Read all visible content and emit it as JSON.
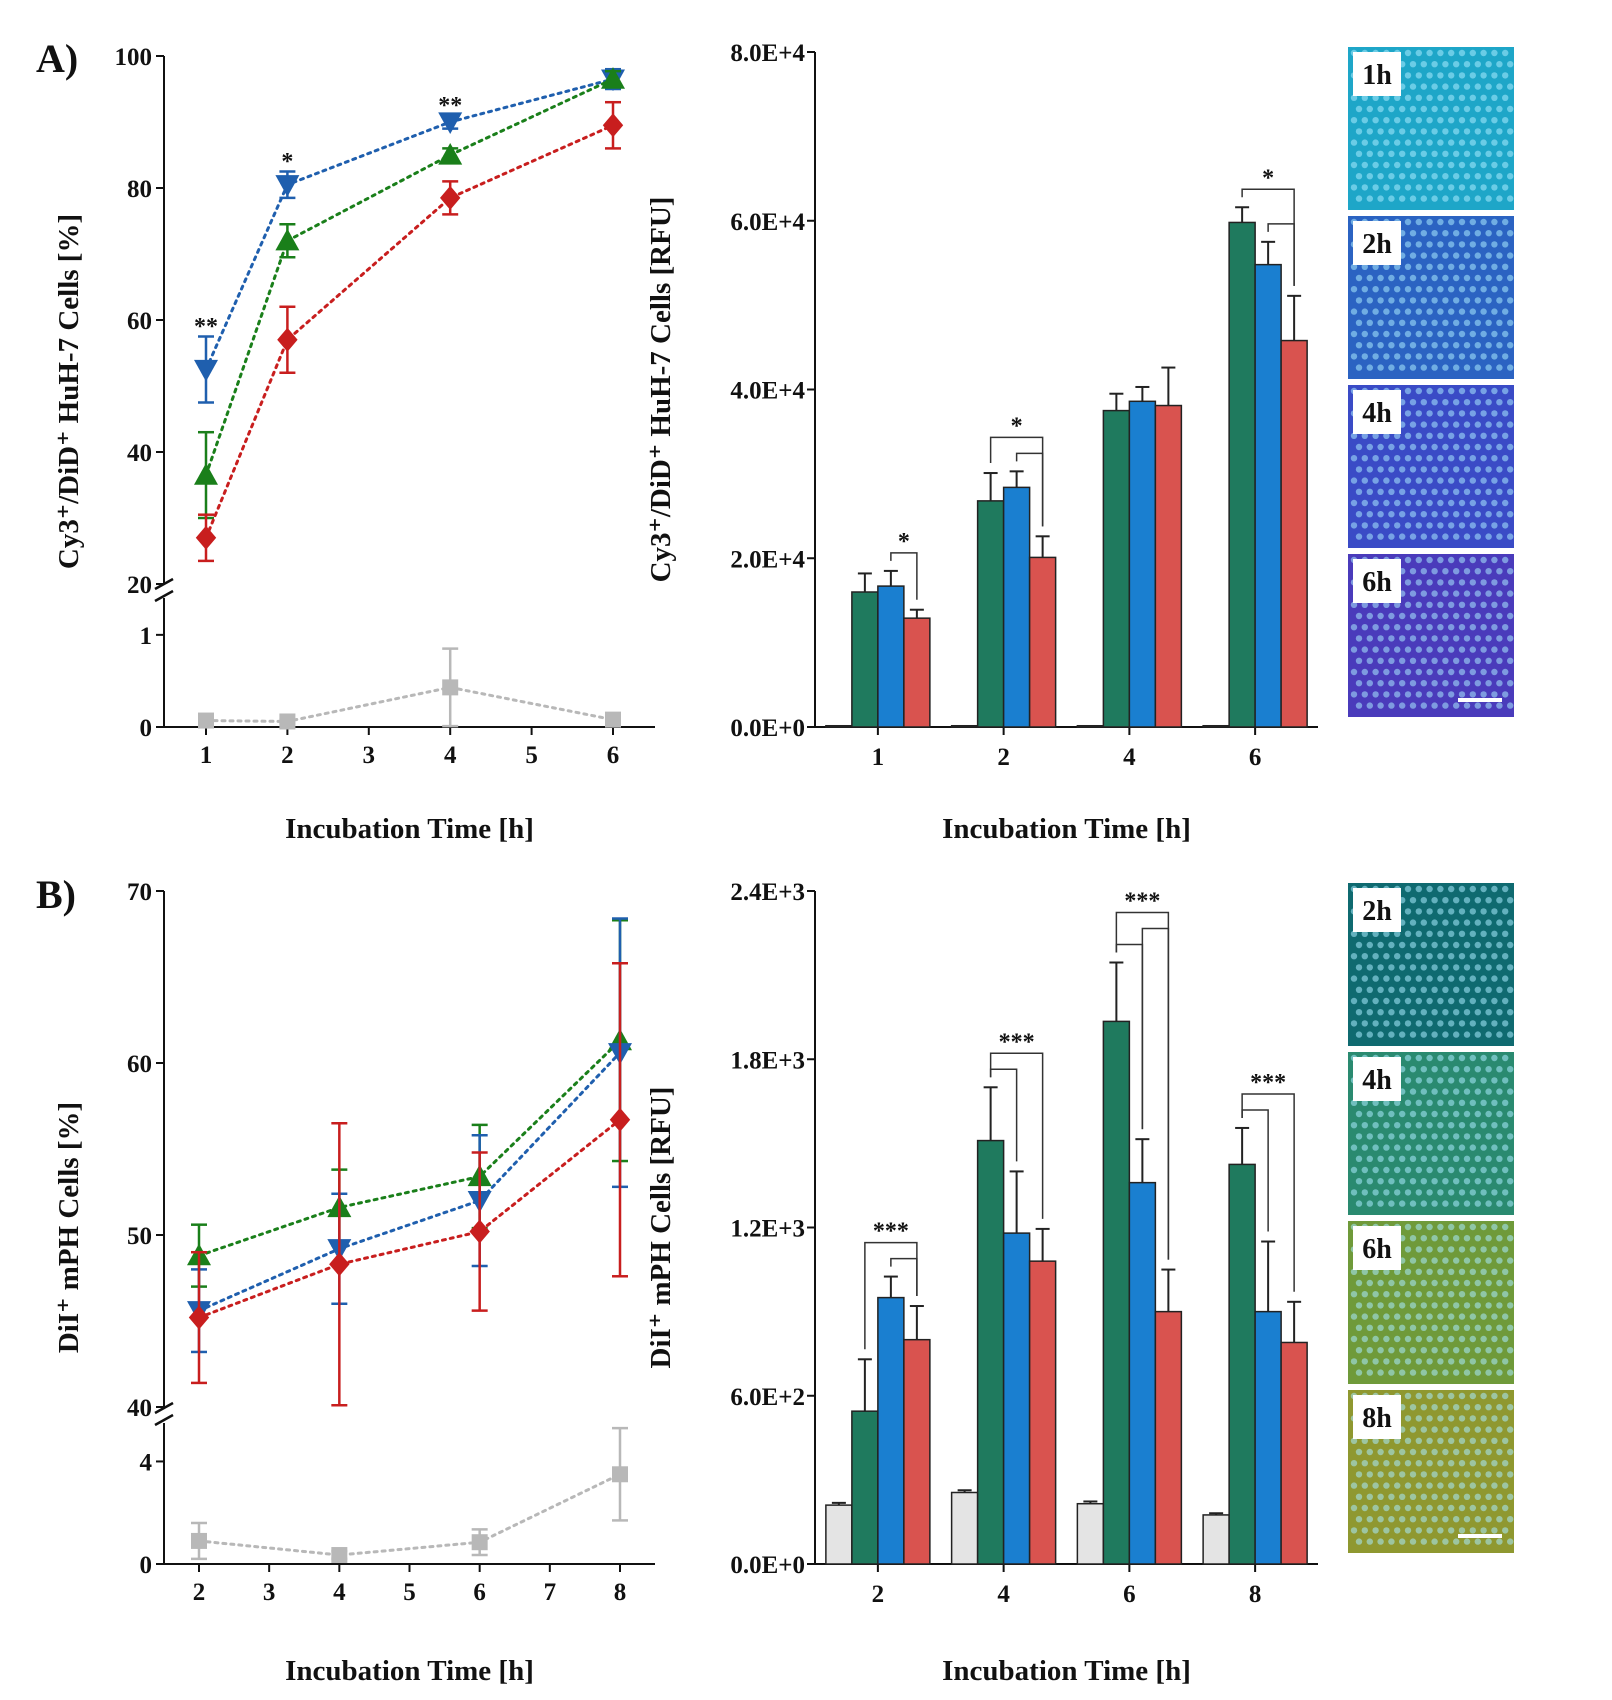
{
  "panels": {
    "a": {
      "label": "A)"
    },
    "b": {
      "label": "B)"
    }
  },
  "colors": {
    "green_line": "#1a7f1a",
    "blue_line": "#1f5fae",
    "red_line": "#c81e1e",
    "gray_line": "#b8b8b8",
    "bar_green": "#1f7a5e",
    "bar_blue": "#1a7fd0",
    "bar_red": "#d9534f",
    "bar_gray": "#e4e4e4"
  },
  "micrographs": {
    "a": {
      "labels": [
        "1h",
        "2h",
        "4h",
        "6h"
      ],
      "colors": [
        "#1ea6c8",
        "#2b63c2",
        "#3a4bc6",
        "#4a3bbb"
      ]
    },
    "b": {
      "labels": [
        "2h",
        "4h",
        "6h",
        "8h"
      ],
      "colors": [
        "#0f6a70",
        "#2a8a70",
        "#6f9a3a",
        "#8f9830"
      ]
    }
  },
  "chart_data": [
    {
      "id": "A_left",
      "type": "line",
      "xlabel": "Incubation Time [h]",
      "ylabel": "Cy3⁺/DiD⁺ HuH-7 Cells [%]",
      "x_ticks": [
        "1",
        "2",
        "3",
        "4",
        "5",
        "6"
      ],
      "y_ticks_upper": [
        "20",
        "40",
        "60",
        "80",
        "100"
      ],
      "y_ticks_lower": [
        "0",
        "1"
      ],
      "ylim_upper": [
        20,
        100
      ],
      "ylim_lower": [
        0,
        1.4
      ],
      "axis_break": true,
      "x": [
        1,
        2,
        4,
        6
      ],
      "series": [
        {
          "color_key": "blue_line",
          "marker": "triangle-down",
          "values": [
            52.5,
            80.5,
            90.0,
            96.5
          ],
          "errors": [
            5.0,
            2.0,
            1.0,
            1.5
          ]
        },
        {
          "color_key": "green_line",
          "marker": "triangle-up",
          "values": [
            36.5,
            72.0,
            85.0,
            96.5
          ],
          "errors": [
            6.5,
            2.5,
            1.0,
            1.2
          ]
        },
        {
          "color_key": "red_line",
          "marker": "diamond",
          "values": [
            27.0,
            57.0,
            78.5,
            89.5
          ],
          "errors": [
            3.5,
            5.0,
            2.5,
            3.5
          ]
        },
        {
          "color_key": "gray_line",
          "marker": "square",
          "lower": true,
          "values": [
            0.07,
            0.06,
            0.43,
            0.08
          ],
          "errors": [
            0.02,
            0.02,
            0.42,
            0.02
          ]
        }
      ],
      "annotations": [
        {
          "x": 1,
          "y": 58.5,
          "text": "**"
        },
        {
          "x": 2,
          "y": 83.5,
          "text": "*"
        },
        {
          "x": 4,
          "y": 92.0,
          "text": "**"
        }
      ]
    },
    {
      "id": "A_right",
      "type": "bar",
      "xlabel": "Incubation Time [h]",
      "ylabel": "Cy3⁺/DiD⁺ HuH-7 Cells [RFU]",
      "categories": [
        "1",
        "2",
        "4",
        "6"
      ],
      "y_ticks": [
        "0.0E+0",
        "2.0E+4",
        "4.0E+4",
        "6.0E+4",
        "8.0E+4"
      ],
      "ylim": [
        0,
        80000
      ],
      "series": [
        {
          "color_key": "bar_gray",
          "values": [
            150,
            150,
            150,
            150
          ],
          "errors": [
            0,
            0,
            0,
            0
          ]
        },
        {
          "color_key": "bar_green",
          "values": [
            16000,
            26800,
            37500,
            59800
          ],
          "errors": [
            2200,
            3300,
            2000,
            1800
          ]
        },
        {
          "color_key": "bar_blue",
          "values": [
            16700,
            28400,
            38600,
            54800
          ],
          "errors": [
            1800,
            1900,
            1700,
            2700
          ]
        },
        {
          "color_key": "bar_red",
          "values": [
            12900,
            20100,
            38100,
            45800
          ],
          "errors": [
            1000,
            2500,
            4500,
            5300
          ]
        }
      ],
      "significance": [
        {
          "cat": 0,
          "brackets": [
            [
              2,
              3
            ]
          ],
          "text": "*"
        },
        {
          "cat": 1,
          "brackets": [
            [
              1,
              3
            ],
            [
              2,
              3
            ]
          ],
          "text": "*"
        },
        {
          "cat": 3,
          "brackets": [
            [
              1,
              3
            ],
            [
              2,
              3
            ]
          ],
          "text": "*"
        }
      ]
    },
    {
      "id": "B_left",
      "type": "line",
      "xlabel": "Incubation Time [h]",
      "ylabel": "DiI⁺ mPH Cells [%]",
      "x_ticks": [
        "2",
        "3",
        "4",
        "5",
        "6",
        "7",
        "8"
      ],
      "y_ticks_upper": [
        "40",
        "50",
        "60",
        "70"
      ],
      "y_ticks_lower": [
        "0",
        "4"
      ],
      "ylim_upper": [
        40,
        70
      ],
      "ylim_lower": [
        0,
        5.5
      ],
      "axis_break": true,
      "x": [
        2,
        4,
        6,
        8
      ],
      "series": [
        {
          "color_key": "green_line",
          "marker": "triangle-up",
          "values": [
            48.8,
            51.6,
            53.4,
            61.3
          ],
          "errors": [
            1.8,
            2.2,
            3.0,
            7.0
          ]
        },
        {
          "color_key": "blue_line",
          "marker": "triangle-down",
          "values": [
            45.6,
            49.2,
            52.0,
            60.6
          ],
          "errors": [
            2.4,
            3.2,
            3.8,
            7.8
          ]
        },
        {
          "color_key": "red_line",
          "marker": "diamond",
          "values": [
            45.2,
            48.3,
            50.2,
            56.7
          ],
          "errors": [
            3.8,
            8.2,
            4.6,
            9.1
          ]
        },
        {
          "color_key": "gray_line",
          "marker": "square",
          "lower": true,
          "values": [
            0.9,
            0.35,
            0.85,
            3.5
          ],
          "errors": [
            0.7,
            0.15,
            0.5,
            1.8
          ]
        }
      ]
    },
    {
      "id": "B_right",
      "type": "bar",
      "xlabel": "Incubation Time [h]",
      "ylabel": "DiI⁺ mPH Cells [RFU]",
      "categories": [
        "2",
        "4",
        "6",
        "8"
      ],
      "y_ticks": [
        "0.0E+0",
        "6.0E+2",
        "1.2E+3",
        "1.8E+3",
        "2.4E+3"
      ],
      "ylim": [
        0,
        2400
      ],
      "series": [
        {
          "color_key": "bar_gray",
          "values": [
            210,
            255,
            215,
            175
          ],
          "errors": [
            8,
            8,
            8,
            6
          ]
        },
        {
          "color_key": "bar_green",
          "values": [
            545,
            1510,
            1935,
            1425
          ],
          "errors": [
            185,
            190,
            210,
            130
          ]
        },
        {
          "color_key": "bar_blue",
          "values": [
            950,
            1180,
            1360,
            900
          ],
          "errors": [
            75,
            220,
            155,
            250
          ]
        },
        {
          "color_key": "bar_red",
          "values": [
            800,
            1080,
            900,
            790
          ],
          "errors": [
            120,
            115,
            150,
            145
          ]
        }
      ],
      "significance": [
        {
          "cat": 0,
          "brackets": [
            [
              1,
              3
            ],
            [
              2,
              3
            ]
          ],
          "text": "***"
        },
        {
          "cat": 1,
          "brackets": [
            [
              1,
              2
            ],
            [
              1,
              3
            ]
          ],
          "text": "***"
        },
        {
          "cat": 2,
          "brackets": [
            [
              1,
              2
            ],
            [
              1,
              3
            ],
            [
              2,
              3
            ]
          ],
          "text": "***"
        },
        {
          "cat": 3,
          "brackets": [
            [
              1,
              2
            ],
            [
              1,
              3
            ]
          ],
          "text": "***"
        }
      ]
    }
  ]
}
